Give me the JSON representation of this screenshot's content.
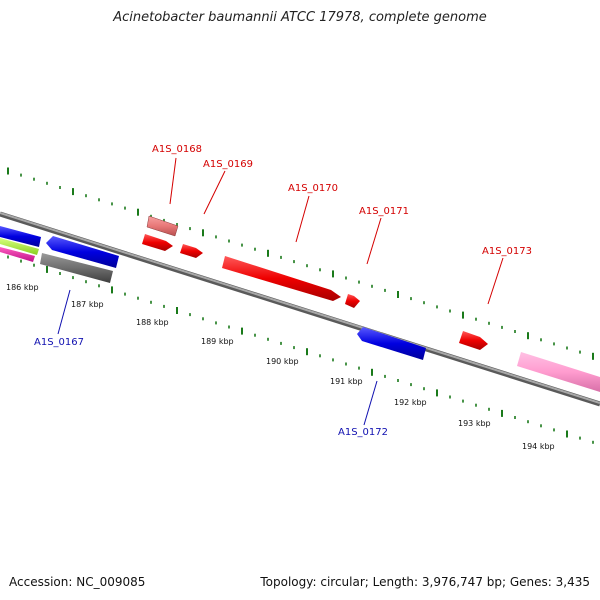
{
  "title": "Acinetobacter baumannii ATCC 17978, complete genome",
  "accession": "Accession: NC_009085",
  "topology": "Topology: circular; Length: 3,976,747 bp; Genes: 3,435",
  "colors": {
    "backbone": "#8a8a8a",
    "tick": "#1a7a1a",
    "label_top": "#d40000",
    "label_bottom": "#1010b0"
  },
  "kbp_labels": [
    "186 kbp",
    "187 kbp",
    "188 kbp",
    "189 kbp",
    "190 kbp",
    "191 kbp",
    "192 kbp",
    "193 kbp",
    "194 kbp"
  ],
  "gene_labels": {
    "A1S_0167": "A1S_0167",
    "A1S_0168": "A1S_0168",
    "A1S_0169": "A1S_0169",
    "A1S_0170": "A1S_0170",
    "A1S_0171": "A1S_0171",
    "A1S_0172": "A1S_0172",
    "A1S_0173": "A1S_0173"
  }
}
